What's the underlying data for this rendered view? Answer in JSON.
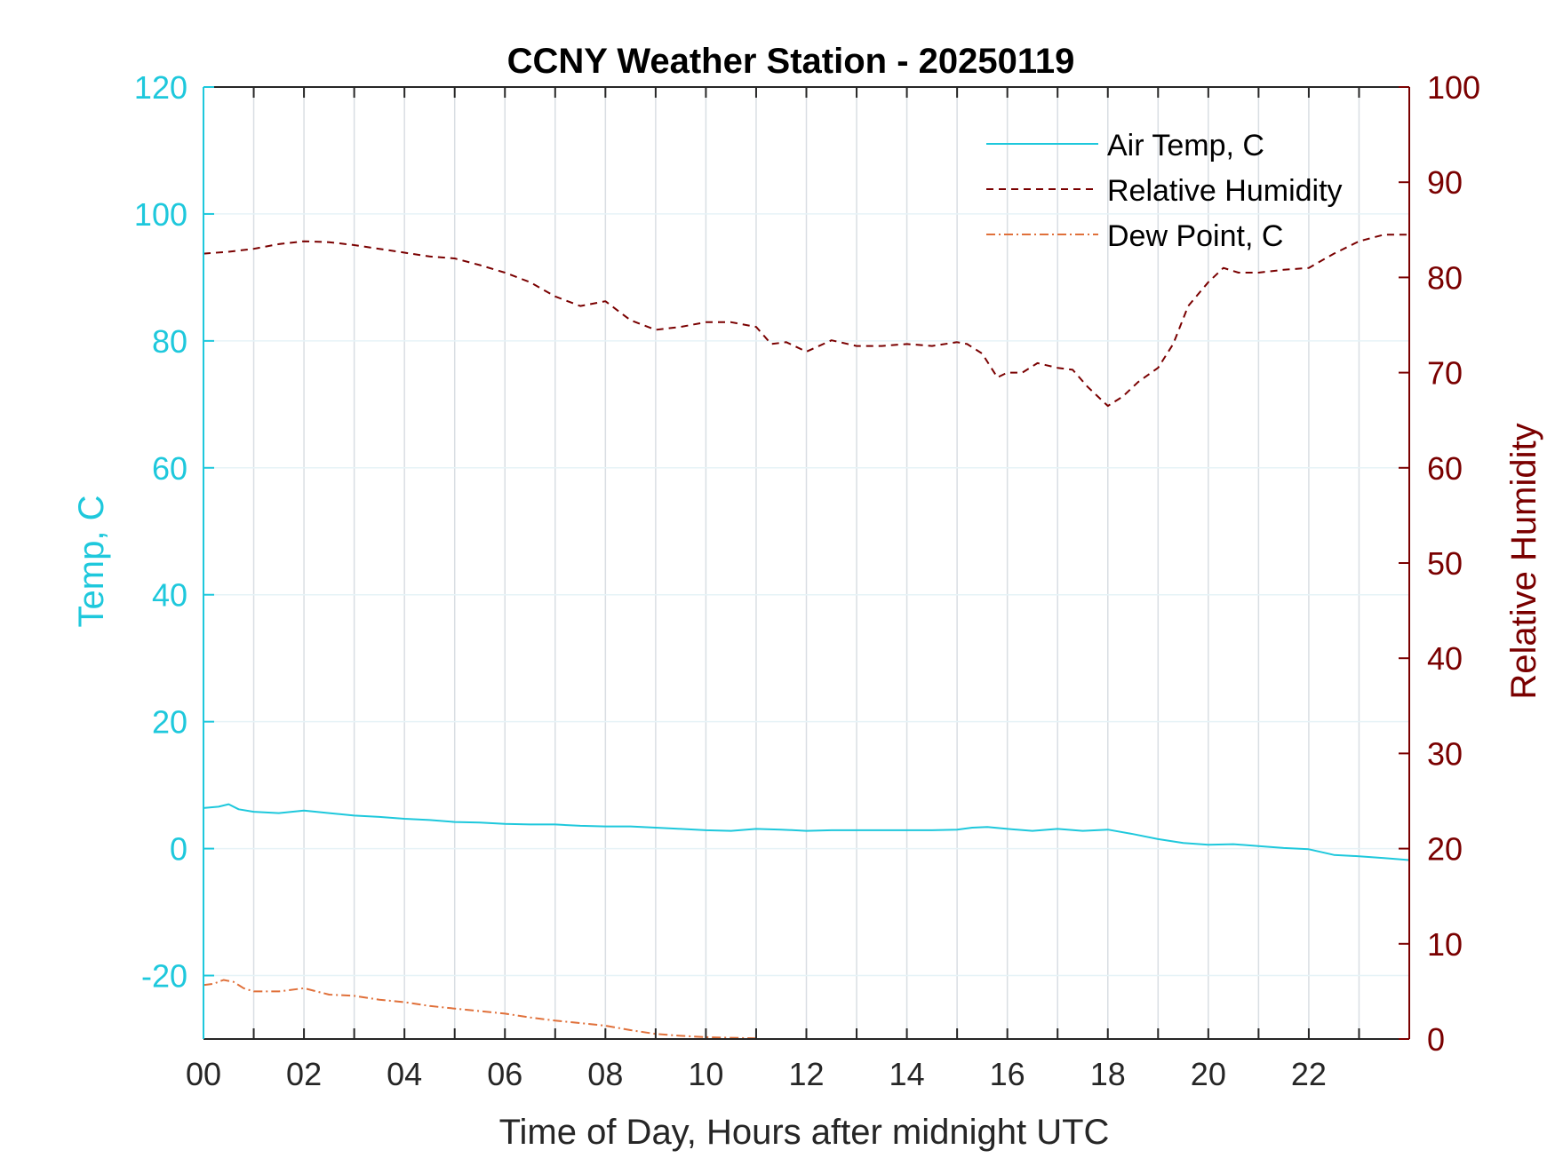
{
  "chart_data": {
    "type": "line",
    "title": "CCNY Weather Station - 20250119",
    "xlabel": "Time of Day, Hours after midnight UTC",
    "ylabel_left": "Temp, C",
    "ylabel_right": "Relative Humidity",
    "xlim": [
      0,
      24
    ],
    "ylim_left": [
      -30,
      120
    ],
    "ylim_right": [
      0,
      100
    ],
    "x_ticks": [
      0,
      2,
      4,
      6,
      8,
      10,
      12,
      14,
      16,
      18,
      20,
      22
    ],
    "x_tick_labels": [
      "00",
      "02",
      "04",
      "06",
      "08",
      "10",
      "12",
      "14",
      "16",
      "18",
      "20",
      "22"
    ],
    "y_left_ticks": [
      -20,
      0,
      20,
      40,
      60,
      80,
      100,
      120
    ],
    "y_left_tick_labels": [
      "-20",
      "0",
      "20",
      "40",
      "60",
      "80",
      "100",
      "120"
    ],
    "y_right_ticks": [
      0,
      10,
      20,
      30,
      40,
      50,
      60,
      70,
      80,
      90,
      100
    ],
    "y_right_tick_labels": [
      "0",
      "10",
      "20",
      "30",
      "40",
      "50",
      "60",
      "70",
      "80",
      "90",
      "100"
    ],
    "grid": true,
    "legend_position": "top-right",
    "colors": {
      "air_temp": "#1ec8dc",
      "relative_humidity": "#7a0000",
      "dew_point": "#e0703a",
      "grid": "#d9dee3",
      "axis_x": "#262626"
    },
    "series": [
      {
        "name": "Air Temp, C",
        "axis": "left",
        "style": "solid",
        "x": [
          0,
          0.3,
          0.5,
          0.7,
          1,
          1.5,
          2,
          2.5,
          3,
          3.5,
          4,
          4.5,
          5,
          5.5,
          6,
          6.5,
          7,
          7.5,
          8,
          8.5,
          9,
          9.5,
          10,
          10.5,
          11,
          11.5,
          12,
          12.5,
          13,
          13.5,
          14,
          14.5,
          15,
          15.3,
          15.6,
          16,
          16.5,
          17,
          17.5,
          18,
          18.5,
          19,
          19.5,
          20,
          20.5,
          21,
          21.5,
          22,
          22.5,
          23,
          23.5,
          24
        ],
        "y": [
          6.4,
          6.6,
          7.0,
          6.2,
          5.8,
          5.6,
          6.0,
          5.6,
          5.2,
          5.0,
          4.7,
          4.5,
          4.2,
          4.1,
          3.9,
          3.8,
          3.8,
          3.6,
          3.5,
          3.5,
          3.3,
          3.1,
          2.9,
          2.8,
          3.1,
          3.0,
          2.8,
          2.9,
          2.9,
          2.9,
          2.9,
          2.9,
          3.0,
          3.3,
          3.4,
          3.1,
          2.8,
          3.1,
          2.8,
          3.0,
          2.3,
          1.5,
          0.9,
          0.6,
          0.7,
          0.4,
          0.1,
          -0.1,
          -1.0,
          -1.2,
          -1.5,
          -1.8
        ]
      },
      {
        "name": "Relative Humidity",
        "axis": "right",
        "style": "dashed",
        "x": [
          0,
          0.5,
          1,
          1.5,
          2,
          2.5,
          3,
          3.5,
          4,
          4.5,
          5,
          5.5,
          6,
          6.5,
          7,
          7.5,
          8,
          8.5,
          9,
          9.5,
          10,
          10.5,
          11,
          11.3,
          11.6,
          12,
          12.5,
          13,
          13.5,
          14,
          14.5,
          15,
          15.2,
          15.5,
          15.8,
          16,
          16.3,
          16.6,
          17,
          17.3,
          17.6,
          18,
          18.3,
          18.6,
          19,
          19.3,
          19.6,
          20,
          20.3,
          20.6,
          21,
          21.5,
          22,
          22.5,
          23,
          23.5,
          24
        ],
        "y": [
          82.5,
          82.7,
          83.0,
          83.5,
          83.8,
          83.7,
          83.4,
          83.0,
          82.6,
          82.2,
          82.0,
          81.3,
          80.5,
          79.5,
          78.0,
          77.0,
          77.5,
          75.5,
          74.5,
          74.8,
          75.3,
          75.3,
          74.8,
          73.0,
          73.2,
          72.2,
          73.4,
          72.8,
          72.8,
          73.0,
          72.8,
          73.2,
          73.0,
          72.0,
          69.5,
          70.0,
          70.0,
          71.0,
          70.5,
          70.3,
          68.5,
          66.5,
          67.5,
          69.0,
          70.5,
          73.0,
          77.0,
          79.5,
          81.0,
          80.5,
          80.5,
          80.8,
          81.0,
          82.5,
          83.8,
          84.5,
          84.5
        ]
      },
      {
        "name": "Dew Point, C",
        "axis": "left",
        "style": "dash-dot",
        "x": [
          0,
          0.2,
          0.4,
          0.6,
          0.8,
          1,
          1.5,
          2,
          2.5,
          3,
          3.5,
          4,
          4.5,
          5,
          5.5,
          6,
          6.5,
          7,
          7.5,
          8,
          8.5,
          9,
          9.5,
          10,
          10.5,
          11
        ],
        "y": [
          -21.5,
          -21.3,
          -20.7,
          -21.0,
          -22.0,
          -22.5,
          -22.5,
          -22.0,
          -23.0,
          -23.2,
          -23.8,
          -24.2,
          -24.8,
          -25.2,
          -25.6,
          -26.0,
          -26.6,
          -27.1,
          -27.5,
          -27.9,
          -28.6,
          -29.2,
          -29.5,
          -29.7,
          -29.8,
          -29.9
        ]
      }
    ]
  }
}
